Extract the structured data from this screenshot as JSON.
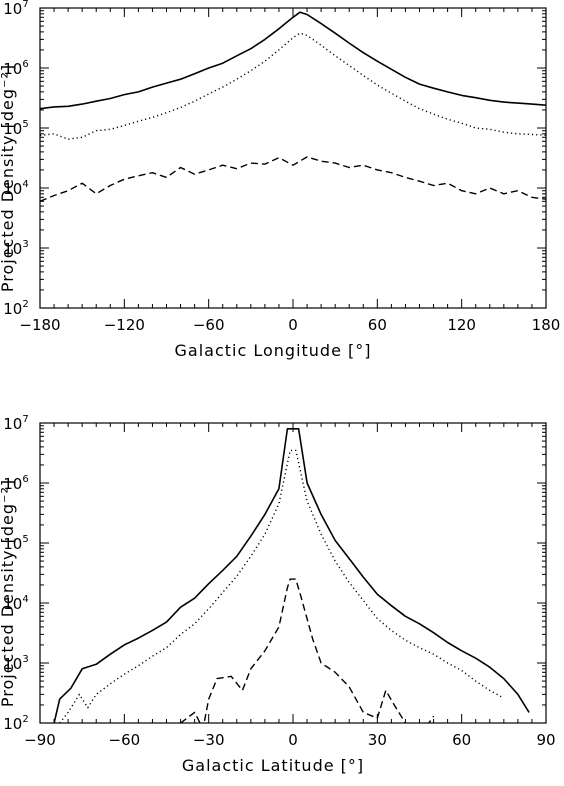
{
  "chart_data": [
    {
      "type": "line",
      "xlabel": "Galactic Longitude [°]",
      "ylabel": "Projected Density [deg⁻²]",
      "xlim": [
        -180,
        180
      ],
      "ylim": [
        100,
        10000000
      ],
      "yscale": "log",
      "grid": false,
      "x_ticks": [
        -180,
        -120,
        -60,
        0,
        60,
        120,
        180
      ],
      "x_tick_labels": [
        "−180",
        "−120",
        "−60",
        "0",
        "60",
        "120",
        "180"
      ],
      "y_tick_labels": [
        "10^2",
        "10^3",
        "10^4",
        "10^5",
        "10^6",
        "10^7"
      ],
      "series": [
        {
          "style": "solid",
          "points": [
            [
              -180,
              210000
            ],
            [
              -170,
              225000
            ],
            [
              -160,
              230000
            ],
            [
              -150,
              250000
            ],
            [
              -140,
              280000
            ],
            [
              -130,
              310000
            ],
            [
              -120,
              360000
            ],
            [
              -110,
              400000
            ],
            [
              -100,
              480000
            ],
            [
              -90,
              560000
            ],
            [
              -80,
              650000
            ],
            [
              -70,
              800000
            ],
            [
              -60,
              1000000
            ],
            [
              -50,
              1200000
            ],
            [
              -40,
              1600000
            ],
            [
              -30,
              2100000
            ],
            [
              -20,
              3000000
            ],
            [
              -10,
              4500000
            ],
            [
              0,
              7000000
            ],
            [
              5,
              8500000
            ],
            [
              10,
              7800000
            ],
            [
              20,
              5500000
            ],
            [
              30,
              3800000
            ],
            [
              40,
              2600000
            ],
            [
              50,
              1800000
            ],
            [
              60,
              1300000
            ],
            [
              70,
              950000
            ],
            [
              80,
              700000
            ],
            [
              90,
              540000
            ],
            [
              100,
              460000
            ],
            [
              110,
              400000
            ],
            [
              120,
              350000
            ],
            [
              130,
              320000
            ],
            [
              140,
              290000
            ],
            [
              150,
              270000
            ],
            [
              160,
              260000
            ],
            [
              170,
              250000
            ],
            [
              180,
              240000
            ]
          ]
        },
        {
          "style": "dotted",
          "points": [
            [
              -180,
              75000
            ],
            [
              -170,
              80000
            ],
            [
              -160,
              65000
            ],
            [
              -150,
              70000
            ],
            [
              -140,
              90000
            ],
            [
              -130,
              95000
            ],
            [
              -120,
              110000
            ],
            [
              -110,
              130000
            ],
            [
              -100,
              150000
            ],
            [
              -90,
              180000
            ],
            [
              -80,
              220000
            ],
            [
              -70,
              280000
            ],
            [
              -60,
              370000
            ],
            [
              -50,
              480000
            ],
            [
              -40,
              650000
            ],
            [
              -30,
              900000
            ],
            [
              -20,
              1300000
            ],
            [
              -10,
              2000000
            ],
            [
              0,
              3200000
            ],
            [
              5,
              3800000
            ],
            [
              10,
              3500000
            ],
            [
              20,
              2400000
            ],
            [
              30,
              1600000
            ],
            [
              40,
              1100000
            ],
            [
              50,
              750000
            ],
            [
              60,
              520000
            ],
            [
              70,
              380000
            ],
            [
              80,
              280000
            ],
            [
              90,
              210000
            ],
            [
              100,
              170000
            ],
            [
              110,
              140000
            ],
            [
              120,
              120000
            ],
            [
              130,
              100000
            ],
            [
              140,
              95000
            ],
            [
              150,
              85000
            ],
            [
              160,
              80000
            ],
            [
              170,
              78000
            ],
            [
              180,
              76000
            ]
          ]
        },
        {
          "style": "dashed",
          "points": [
            [
              -180,
              6000
            ],
            [
              -170,
              7500
            ],
            [
              -160,
              9000
            ],
            [
              -150,
              12000
            ],
            [
              -140,
              8000
            ],
            [
              -130,
              11000
            ],
            [
              -120,
              14000
            ],
            [
              -110,
              16000
            ],
            [
              -100,
              18000
            ],
            [
              -90,
              15000
            ],
            [
              -80,
              22000
            ],
            [
              -70,
              17000
            ],
            [
              -60,
              20000
            ],
            [
              -50,
              24000
            ],
            [
              -40,
              21000
            ],
            [
              -30,
              26000
            ],
            [
              -20,
              25000
            ],
            [
              -10,
              32000
            ],
            [
              0,
              24000
            ],
            [
              10,
              33000
            ],
            [
              20,
              28000
            ],
            [
              30,
              26000
            ],
            [
              40,
              22000
            ],
            [
              50,
              24000
            ],
            [
              60,
              20000
            ],
            [
              70,
              18000
            ],
            [
              80,
              15000
            ],
            [
              90,
              13000
            ],
            [
              100,
              11000
            ],
            [
              110,
              12000
            ],
            [
              120,
              9000
            ],
            [
              130,
              8000
            ],
            [
              140,
              10000
            ],
            [
              150,
              8000
            ],
            [
              160,
              9000
            ],
            [
              170,
              7000
            ],
            [
              180,
              6500
            ]
          ]
        }
      ]
    },
    {
      "type": "line",
      "xlabel": "Galactic Latitude [°]",
      "ylabel": "Projected Density [deg⁻²]",
      "xlim": [
        -90,
        90
      ],
      "ylim": [
        100,
        10000000
      ],
      "yscale": "log",
      "grid": false,
      "x_ticks": [
        -90,
        -60,
        -30,
        0,
        30,
        60,
        90
      ],
      "x_tick_labels": [
        "−90",
        "−60",
        "−30",
        "0",
        "30",
        "60",
        "90"
      ],
      "y_tick_labels": [
        "10^2",
        "10^3",
        "10^4",
        "10^5",
        "10^6",
        "10^7"
      ],
      "series": [
        {
          "style": "solid",
          "points": [
            [
              -85,
              100
            ],
            [
              -83,
              250
            ],
            [
              -79,
              380
            ],
            [
              -75,
              800
            ],
            [
              -70,
              950
            ],
            [
              -65,
              1400
            ],
            [
              -60,
              2000
            ],
            [
              -55,
              2600
            ],
            [
              -50,
              3500
            ],
            [
              -45,
              4800
            ],
            [
              -40,
              8500
            ],
            [
              -35,
              12000
            ],
            [
              -30,
              21000
            ],
            [
              -25,
              35000
            ],
            [
              -20,
              60000
            ],
            [
              -15,
              130000
            ],
            [
              -10,
              300000
            ],
            [
              -5,
              800000
            ],
            [
              -2,
              8000000
            ],
            [
              2,
              8000000
            ],
            [
              5,
              1000000
            ],
            [
              10,
              300000
            ],
            [
              15,
              110000
            ],
            [
              20,
              55000
            ],
            [
              25,
              27000
            ],
            [
              30,
              14000
            ],
            [
              35,
              9000
            ],
            [
              40,
              6000
            ],
            [
              45,
              4500
            ],
            [
              50,
              3200
            ],
            [
              55,
              2200
            ],
            [
              60,
              1600
            ],
            [
              65,
              1200
            ],
            [
              70,
              850
            ],
            [
              75,
              550
            ],
            [
              80,
              300
            ],
            [
              84,
              150
            ]
          ]
        },
        {
          "style": "dotted",
          "points": [
            [
              -83,
              100
            ],
            [
              -80,
              150
            ],
            [
              -76,
              300
            ],
            [
              -73,
              180
            ],
            [
              -70,
              300
            ],
            [
              -65,
              450
            ],
            [
              -60,
              650
            ],
            [
              -55,
              900
            ],
            [
              -50,
              1300
            ],
            [
              -45,
              1800
            ],
            [
              -40,
              3000
            ],
            [
              -35,
              4500
            ],
            [
              -30,
              8000
            ],
            [
              -25,
              15000
            ],
            [
              -20,
              28000
            ],
            [
              -15,
              60000
            ],
            [
              -10,
              140000
            ],
            [
              -5,
              450000
            ],
            [
              -1,
              3500000
            ],
            [
              1,
              3500000
            ],
            [
              5,
              500000
            ],
            [
              10,
              140000
            ],
            [
              15,
              50000
            ],
            [
              20,
              22000
            ],
            [
              25,
              11000
            ],
            [
              30,
              5500
            ],
            [
              35,
              3500
            ],
            [
              40,
              2400
            ],
            [
              45,
              1800
            ],
            [
              50,
              1400
            ],
            [
              55,
              1000
            ],
            [
              60,
              750
            ],
            [
              65,
              500
            ],
            [
              70,
              350
            ],
            [
              75,
              260
            ]
          ]
        },
        {
          "style": "dashed",
          "points": [
            [
              -40,
              100
            ],
            [
              -35,
              150
            ],
            [
              -32,
              80
            ],
            [
              -30,
              250
            ],
            [
              -27,
              550
            ],
            [
              -22,
              600
            ],
            [
              -18,
              350
            ],
            [
              -15,
              800
            ],
            [
              -10,
              1600
            ],
            [
              -5,
              4000
            ],
            [
              -2,
              18000
            ],
            [
              -1,
              25000
            ],
            [
              1,
              25000
            ],
            [
              3,
              12000
            ],
            [
              7,
              2500
            ],
            [
              10,
              1000
            ],
            [
              15,
              700
            ],
            [
              20,
              400
            ],
            [
              25,
              150
            ],
            [
              30,
              120
            ],
            [
              33,
              350
            ],
            [
              36,
              200
            ],
            [
              40,
              100
            ],
            [
              45,
              60
            ],
            [
              50,
              130
            ]
          ]
        }
      ]
    }
  ]
}
